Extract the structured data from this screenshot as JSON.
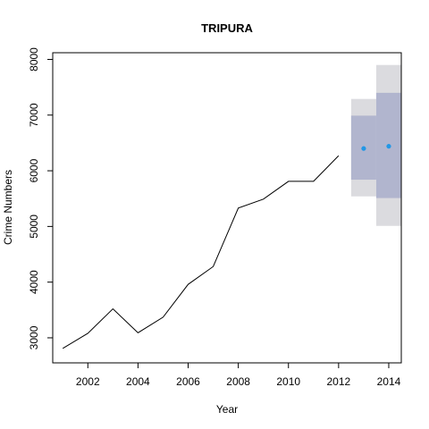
{
  "chart_data": {
    "type": "line",
    "title": "TRIPURA",
    "xlabel": "Year",
    "ylabel": "Crime Numbers",
    "xlim": [
      2000.6,
      2014.5
    ],
    "ylim": [
      2550,
      8120
    ],
    "x_ticks": [
      2002,
      2004,
      2006,
      2008,
      2010,
      2012,
      2014
    ],
    "y_ticks": [
      3000,
      4000,
      5000,
      6000,
      7000,
      8000
    ],
    "grid": false,
    "series": [
      {
        "x": [
          2001,
          2002,
          2003,
          2004,
          2005,
          2006,
          2007,
          2008,
          2009,
          2010,
          2011,
          2012
        ],
        "values": [
          2810,
          3080,
          3520,
          3090,
          3370,
          3960,
          4280,
          5330,
          5490,
          5810,
          5810,
          6270
        ]
      }
    ],
    "forecast": {
      "x": [
        2013,
        2014
      ],
      "point": [
        6400,
        6440
      ],
      "lo80": [
        5840,
        5510
      ],
      "hi80": [
        6990,
        7400
      ],
      "lo95": [
        5540,
        5010
      ],
      "hi95": [
        7290,
        7900
      ],
      "colors": {
        "band95": "#dbdbdf",
        "band80": "#b1b5ce",
        "point": "#2297e6"
      }
    }
  }
}
